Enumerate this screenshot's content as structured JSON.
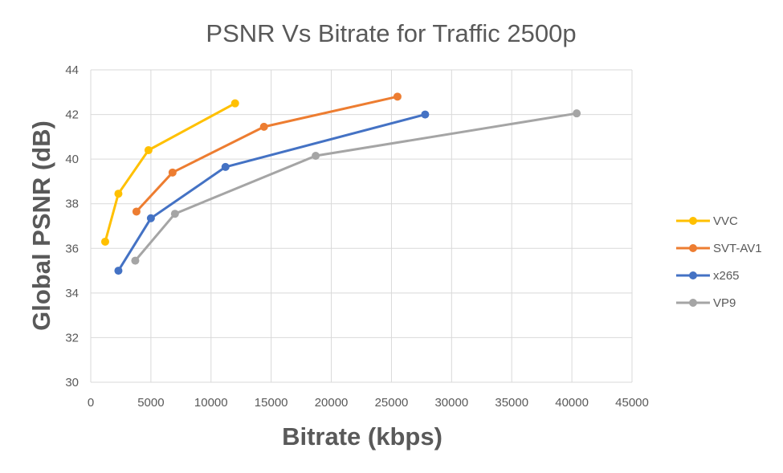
{
  "chart_data": {
    "type": "line",
    "title": "PSNR Vs Bitrate for Traffic 2500p",
    "xlabel": "Bitrate (kbps)",
    "ylabel": "Global  PSNR (dB)",
    "xlim": [
      0,
      45000
    ],
    "ylim": [
      30,
      44
    ],
    "x_ticks": [
      0,
      5000,
      10000,
      15000,
      20000,
      25000,
      30000,
      35000,
      40000,
      45000
    ],
    "y_ticks": [
      30,
      32,
      34,
      36,
      38,
      40,
      42,
      44
    ],
    "grid": true,
    "legend_position": "right",
    "series": [
      {
        "name": "VVC",
        "color": "#ffc000",
        "points": [
          [
            1200,
            36.3
          ],
          [
            2300,
            38.45
          ],
          [
            4800,
            40.4
          ],
          [
            12000,
            42.5
          ]
        ]
      },
      {
        "name": "SVT-AV1",
        "color": "#ed7d31",
        "points": [
          [
            3800,
            37.65
          ],
          [
            6800,
            39.4
          ],
          [
            14400,
            41.45
          ],
          [
            25500,
            42.8
          ]
        ]
      },
      {
        "name": "x265",
        "color": "#4472c4",
        "points": [
          [
            2300,
            35.0
          ],
          [
            5000,
            37.35
          ],
          [
            11200,
            39.65
          ],
          [
            27800,
            42.0
          ]
        ]
      },
      {
        "name": "VP9",
        "color": "#a5a5a5",
        "points": [
          [
            3700,
            35.45
          ],
          [
            7000,
            37.55
          ],
          [
            18700,
            40.15
          ],
          [
            40400,
            42.05
          ]
        ]
      }
    ]
  }
}
